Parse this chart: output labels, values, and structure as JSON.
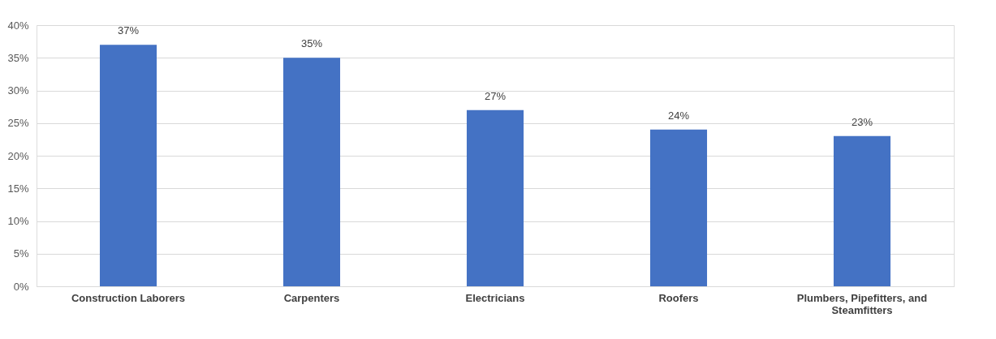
{
  "chart_data": {
    "type": "bar",
    "categories": [
      "Construction Laborers",
      "Carpenters",
      "Electricians",
      "Roofers",
      "Plumbers, Pipefitters, and Steamfitters"
    ],
    "values": [
      37,
      35,
      27,
      24,
      23
    ],
    "color": "#4472c4",
    "ylim": [
      0,
      40
    ],
    "yticks": [
      {
        "value": 0,
        "label": "0%"
      },
      {
        "value": 5,
        "label": "5%"
      },
      {
        "value": 10,
        "label": "10%"
      },
      {
        "value": 15,
        "label": "15%"
      },
      {
        "value": 20,
        "label": "20%"
      },
      {
        "value": 25,
        "label": "25%"
      },
      {
        "value": 30,
        "label": "30%"
      },
      {
        "value": 35,
        "label": "35%"
      },
      {
        "value": 40,
        "label": "40%"
      }
    ],
    "value_labels": [
      "37%",
      "35%",
      "27%",
      "24%",
      "23%"
    ],
    "grid": "y"
  }
}
